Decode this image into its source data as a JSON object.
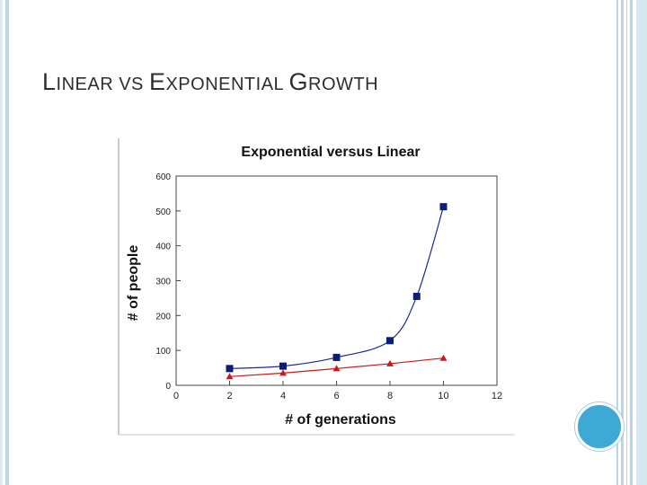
{
  "slide": {
    "title_parts": [
      {
        "text": "L",
        "size": "big"
      },
      {
        "text": "INEAR VS ",
        "size": "small"
      },
      {
        "text": "E",
        "size": "big"
      },
      {
        "text": "XPONENTIAL ",
        "size": "small"
      },
      {
        "text": "G",
        "size": "big"
      },
      {
        "text": "ROWTH",
        "size": "small"
      }
    ]
  },
  "chart_data": {
    "type": "line",
    "title": "Exponential versus Linear",
    "xlabel": "# of generations",
    "ylabel": "# of people",
    "xlim": [
      0,
      12
    ],
    "ylim": [
      0,
      600
    ],
    "xticks": [
      0,
      2,
      4,
      6,
      8,
      10,
      12
    ],
    "yticks": [
      0,
      100,
      200,
      300,
      400,
      500,
      600
    ],
    "grid": false,
    "series": [
      {
        "name": "Exponential",
        "color": "#0b1d78",
        "line_color": "#1a2a9a",
        "marker": "square",
        "x": [
          2,
          4,
          6,
          8,
          9,
          10
        ],
        "y": [
          48,
          55,
          80,
          128,
          255,
          512
        ]
      },
      {
        "name": "Linear",
        "color": "#d01818",
        "line_color": "#d01818",
        "marker": "triangle",
        "x": [
          2,
          4,
          6,
          8,
          10
        ],
        "y": [
          25,
          35,
          48,
          62,
          78
        ]
      }
    ]
  },
  "colors": {
    "accent_circle": "#3fa9d6",
    "border": "#b9d6e5"
  }
}
